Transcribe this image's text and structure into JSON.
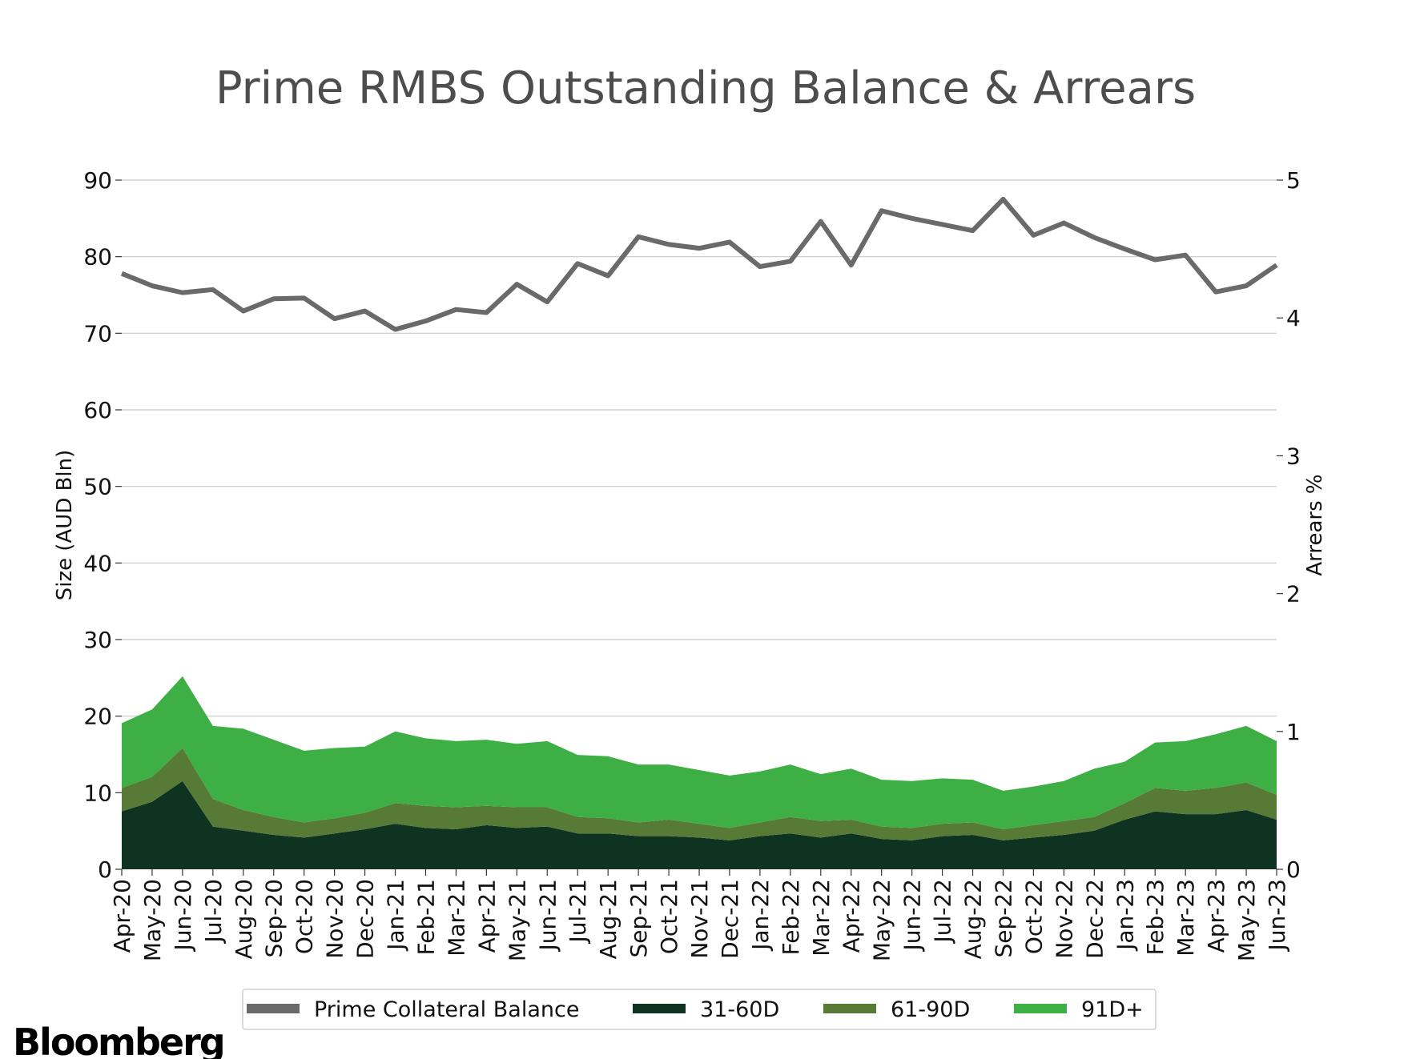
{
  "chart_data": {
    "type": "area",
    "title": "Prime RMBS Outstanding Balance & Arrears",
    "ylabel": "Size (AUD Bln)",
    "y2label": "Arrears %",
    "ylim": [
      0,
      90
    ],
    "y2lim": [
      0,
      5
    ],
    "yticks": [
      0,
      10,
      20,
      30,
      40,
      50,
      60,
      70,
      80,
      90
    ],
    "y2ticks": [
      0,
      1,
      2,
      3,
      4,
      5
    ],
    "grid": true,
    "legend_position": "bottom",
    "categories": [
      "Apr-20",
      "May-20",
      "Jun-20",
      "Jul-20",
      "Aug-20",
      "Sep-20",
      "Oct-20",
      "Nov-20",
      "Dec-20",
      "Jan-21",
      "Feb-21",
      "Mar-21",
      "Apr-21",
      "May-21",
      "Jun-21",
      "Jul-21",
      "Aug-21",
      "Sep-21",
      "Oct-21",
      "Nov-21",
      "Dec-21",
      "Jan-22",
      "Feb-22",
      "Mar-22",
      "Apr-22",
      "May-22",
      "Jun-22",
      "Jul-22",
      "Aug-22",
      "Sep-22",
      "Oct-22",
      "Nov-22",
      "Dec-22",
      "Jan-23",
      "Feb-23",
      "Mar-23",
      "Apr-23",
      "May-23",
      "Jun-23"
    ],
    "line_series": {
      "name": "Prime Collateral Balance",
      "axis": "left",
      "color": "#6a6a6a",
      "values": [
        77.8,
        76.2,
        75.3,
        75.7,
        72.9,
        74.5,
        74.6,
        71.9,
        72.9,
        70.5,
        71.6,
        73.1,
        72.7,
        76.4,
        74.1,
        79.1,
        77.5,
        82.6,
        81.6,
        81.1,
        81.9,
        78.7,
        79.4,
        84.6,
        78.9,
        86.0,
        85.0,
        84.2,
        83.4,
        87.5,
        82.8,
        84.4,
        82.5,
        81.0,
        79.6,
        80.2,
        75.4,
        76.2,
        78.9
      ]
    },
    "series": [
      {
        "name": "31-60D",
        "axis": "right",
        "color": "#0e3321",
        "values": [
          0.42,
          0.49,
          0.64,
          0.31,
          0.28,
          0.25,
          0.23,
          0.26,
          0.29,
          0.33,
          0.3,
          0.29,
          0.32,
          0.3,
          0.31,
          0.26,
          0.26,
          0.24,
          0.24,
          0.23,
          0.21,
          0.24,
          0.26,
          0.23,
          0.26,
          0.22,
          0.21,
          0.24,
          0.25,
          0.21,
          0.23,
          0.25,
          0.28,
          0.36,
          0.42,
          0.4,
          0.4,
          0.43,
          0.36
        ]
      },
      {
        "name": "61-90D",
        "axis": "right",
        "color": "#577a36",
        "values": [
          0.17,
          0.18,
          0.24,
          0.2,
          0.15,
          0.13,
          0.11,
          0.11,
          0.12,
          0.15,
          0.16,
          0.16,
          0.14,
          0.15,
          0.14,
          0.12,
          0.11,
          0.1,
          0.12,
          0.1,
          0.09,
          0.1,
          0.12,
          0.12,
          0.1,
          0.09,
          0.09,
          0.09,
          0.09,
          0.08,
          0.09,
          0.1,
          0.1,
          0.12,
          0.17,
          0.17,
          0.19,
          0.2,
          0.18
        ]
      },
      {
        "name": "91D+",
        "axis": "right",
        "color": "#3daf45",
        "values": [
          0.47,
          0.49,
          0.52,
          0.53,
          0.59,
          0.56,
          0.52,
          0.51,
          0.48,
          0.52,
          0.49,
          0.48,
          0.48,
          0.46,
          0.48,
          0.45,
          0.45,
          0.42,
          0.4,
          0.39,
          0.38,
          0.37,
          0.38,
          0.34,
          0.37,
          0.34,
          0.34,
          0.33,
          0.31,
          0.28,
          0.28,
          0.29,
          0.35,
          0.3,
          0.33,
          0.36,
          0.39,
          0.41,
          0.39
        ]
      }
    ]
  },
  "branding": {
    "logo_text": "Bloomberg"
  }
}
